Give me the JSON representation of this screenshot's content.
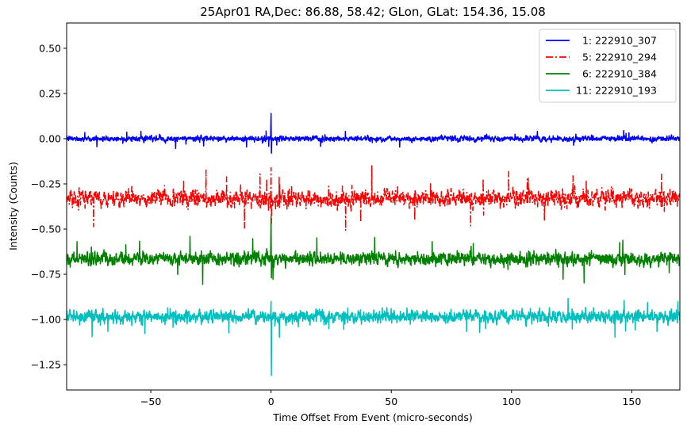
{
  "chart_data": {
    "type": "line",
    "title": "25Apr01 RA,Dec:   86.88,  58.42; GLon, GLat:  154.36,  15.08",
    "xlabel": "Time Offset From Event (micro-seconds)",
    "ylabel": "Intensity (Counts)",
    "xlim": [
      -85,
      170
    ],
    "ylim": [
      -1.39,
      0.64
    ],
    "xticks": [
      -50,
      0,
      50,
      100,
      150
    ],
    "xtick_labels": [
      "−50",
      "0",
      "50",
      "100",
      "150"
    ],
    "yticks": [
      0.5,
      0.25,
      0.0,
      -0.25,
      -0.5,
      -0.75,
      -1.0,
      -1.25
    ],
    "ytick_labels": [
      "0.50",
      "0.25",
      "0.00",
      "−0.25",
      "−0.50",
      "−0.75",
      "−1.00",
      "−1.25"
    ],
    "grid": false,
    "legend_position": "top-right",
    "series": [
      {
        "name": "  1: 222910_307",
        "offset": 0.0,
        "noise": 0.012,
        "spike_max": 0.14,
        "spike_min": -0.08,
        "color": "#0000ff",
        "dash": "solid"
      },
      {
        "name": "  5: 222910_294",
        "offset": -0.33,
        "noise": 0.038,
        "spike_max": -0.16,
        "spike_min": -0.47,
        "color": "#ff0000",
        "dash": "dashdot"
      },
      {
        "name": "  6: 222910_384",
        "offset": -0.665,
        "noise": 0.028,
        "spike_max": -0.43,
        "spike_min": -0.77,
        "color": "#008000",
        "dash": "solid"
      },
      {
        "name": "11: 222910_193",
        "offset": -0.985,
        "noise": 0.028,
        "spike_max": -0.9,
        "spike_min": -1.31,
        "color": "#00bfbf",
        "dash": "solid"
      }
    ]
  }
}
